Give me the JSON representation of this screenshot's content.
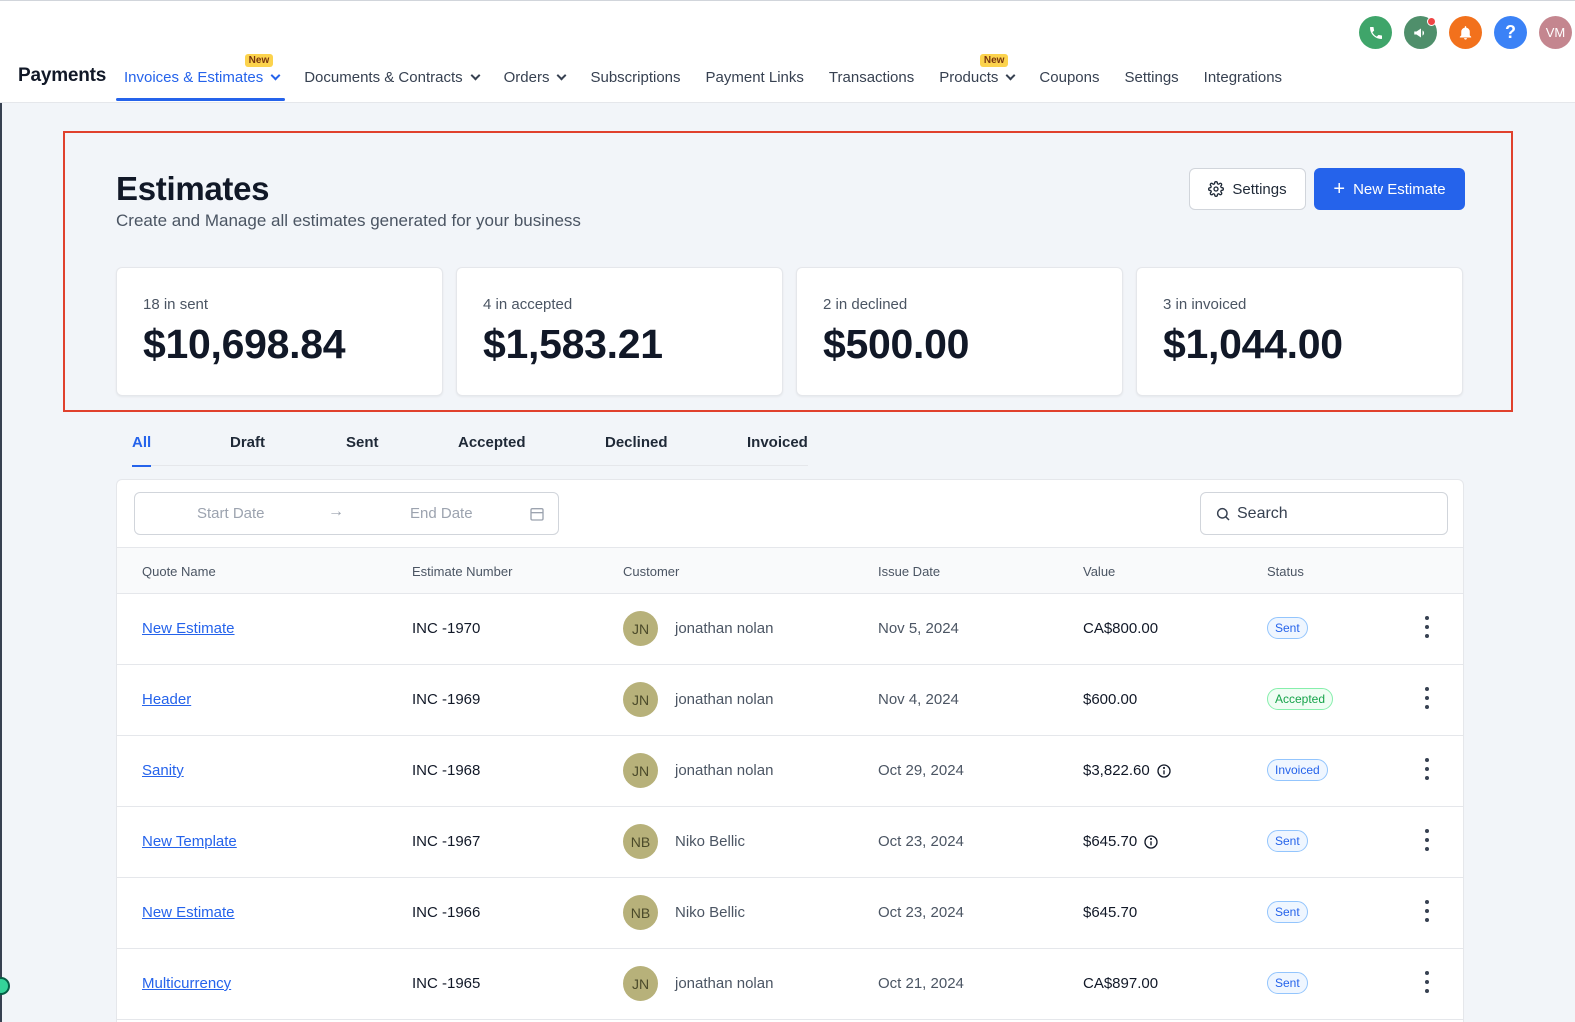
{
  "header": {
    "brand": "Payments",
    "nav": [
      {
        "label": "Invoices & Estimates",
        "dropdown": true,
        "badge": "New",
        "active": true
      },
      {
        "label": "Documents & Contracts",
        "dropdown": true
      },
      {
        "label": "Orders",
        "dropdown": true
      },
      {
        "label": "Subscriptions"
      },
      {
        "label": "Payment Links"
      },
      {
        "label": "Transactions"
      },
      {
        "label": "Products",
        "dropdown": true,
        "badge": "New"
      },
      {
        "label": "Coupons"
      },
      {
        "label": "Settings"
      },
      {
        "label": "Integrations"
      }
    ],
    "icons": [
      {
        "name": "phone-icon",
        "color": "#3fa56a"
      },
      {
        "name": "megaphone-icon",
        "color": "#4f8f6b",
        "notification": true
      },
      {
        "name": "bell-icon",
        "color": "#f2711c"
      },
      {
        "name": "help-icon",
        "color": "#3b82f6",
        "glyph": "?"
      },
      {
        "name": "avatar",
        "color": "#c4868f",
        "glyph": "VM"
      }
    ]
  },
  "page": {
    "title": "Estimates",
    "subtitle": "Create and Manage all estimates generated for your business",
    "settings_label": "Settings",
    "new_label": "New Estimate"
  },
  "stats": [
    {
      "label": "18 in sent",
      "value": "$10,698.84"
    },
    {
      "label": "4 in accepted",
      "value": "$1,583.21"
    },
    {
      "label": "2 in declined",
      "value": "$500.00"
    },
    {
      "label": "3 in invoiced",
      "value": "$1,044.00"
    }
  ],
  "tabs": [
    "All",
    "Draft",
    "Sent",
    "Accepted",
    "Declined",
    "Invoiced"
  ],
  "filters": {
    "start_placeholder": "Start Date",
    "end_placeholder": "End Date",
    "search_placeholder": "Search"
  },
  "table": {
    "columns": [
      "Quote Name",
      "Estimate Number",
      "Customer",
      "Issue Date",
      "Value",
      "Status"
    ],
    "rows": [
      {
        "name": "New Estimate",
        "number": "INC -1970",
        "initials": "JN",
        "customer": "jonathan nolan",
        "date": "Nov 5, 2024",
        "value": "CA$800.00",
        "info": false,
        "status": "Sent"
      },
      {
        "name": "Header",
        "number": "INC -1969",
        "initials": "JN",
        "customer": "jonathan nolan",
        "date": "Nov 4, 2024",
        "value": "$600.00",
        "info": false,
        "status": "Accepted"
      },
      {
        "name": "Sanity",
        "number": "INC -1968",
        "initials": "JN",
        "customer": "jonathan nolan",
        "date": "Oct 29, 2024",
        "value": "$3,822.60",
        "info": true,
        "status": "Invoiced"
      },
      {
        "name": "New Template",
        "number": "INC -1967",
        "initials": "NB",
        "customer": "Niko Bellic",
        "date": "Oct 23, 2024",
        "value": "$645.70",
        "info": true,
        "status": "Sent"
      },
      {
        "name": "New Estimate",
        "number": "INC -1966",
        "initials": "NB",
        "customer": "Niko Bellic",
        "date": "Oct 23, 2024",
        "value": "$645.70",
        "info": false,
        "status": "Sent"
      },
      {
        "name": "Multicurrency",
        "number": "INC -1965",
        "initials": "JN",
        "customer": "jonathan nolan",
        "date": "Oct 21, 2024",
        "value": "CA$897.00",
        "info": false,
        "status": "Sent"
      }
    ]
  },
  "colors": {
    "accent": "#2563eb",
    "highlight_border": "#e0412d"
  }
}
